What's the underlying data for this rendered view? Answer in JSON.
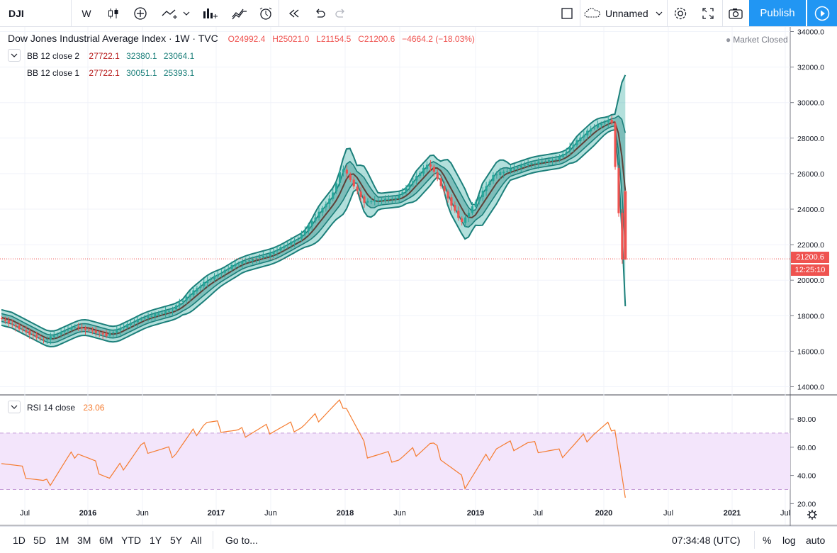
{
  "toolbar": {
    "symbol": "DJI",
    "interval": "W",
    "layout_name": "Unnamed",
    "publish_label": "Publish",
    "icons": [
      "candles-icon",
      "add-compare-icon",
      "indicators-icon",
      "templates-icon",
      "alert-icon",
      "replay-icon",
      "undo-icon",
      "redo-icon",
      "layout-icon",
      "settings-icon",
      "fullscreen-icon",
      "snapshot-icon",
      "publish-play-icon"
    ]
  },
  "header": {
    "title": "Dow Jones Industrial Average Index · 1W · TVC",
    "ohlc": {
      "o": "O24992.4",
      "h": "H25021.0",
      "l": "L21154.5",
      "c": "C21200.6",
      "change": "−4664.2 (−18.03%)"
    },
    "market_status": "Market Closed"
  },
  "indicators": {
    "bb2": {
      "name": "BB 12 close 2",
      "basis": "27722.1",
      "upper": "32380.1",
      "lower": "23064.1"
    },
    "bb1": {
      "name": "BB 12 close 1",
      "basis": "27722.1",
      "upper": "30051.1",
      "lower": "25393.1"
    },
    "rsi": {
      "name": "RSI 14 close",
      "value": "23.06"
    }
  },
  "price_scale": {
    "labels": [
      "34000.0",
      "32000.0",
      "30000.0",
      "28000.0",
      "26000.0",
      "24000.0",
      "22000.0",
      "20000.0",
      "18000.0",
      "16000.0",
      "14000.0"
    ],
    "last_price": "21200.6",
    "countdown": "12:25:10"
  },
  "rsi_scale": {
    "labels": [
      "80.00",
      "60.00",
      "40.00",
      "20.00"
    ],
    "upper_band": 70,
    "lower_band": 30
  },
  "time_axis": {
    "labels": [
      "Jul",
      "2016",
      "Jun",
      "2017",
      "Jun",
      "2018",
      "Jun",
      "2019",
      "Jul",
      "2020",
      "Jul",
      "2021",
      "Jul"
    ]
  },
  "bottom": {
    "ranges": [
      "1D",
      "5D",
      "1M",
      "3M",
      "6M",
      "YTD",
      "1Y",
      "5Y",
      "All"
    ],
    "goto": "Go to...",
    "clock": "07:34:48 (UTC)",
    "percent": "%",
    "log": "log",
    "auto": "auto"
  },
  "colors": {
    "accent": "#2196f3",
    "up": "#26a69a",
    "down": "#ef5350",
    "band": "#1b7f7a",
    "rsi": "#f57c30",
    "rsi_bg": "#f3e5fb"
  },
  "chart_data": {
    "type": "line",
    "x": [
      "2015-06",
      "2015-09",
      "2015-12",
      "2016-03",
      "2016-06",
      "2016-09",
      "2016-12",
      "2017-03",
      "2017-06",
      "2017-09",
      "2017-12",
      "2018-01",
      "2018-03",
      "2018-06",
      "2018-09",
      "2018-12",
      "2019-03",
      "2019-06",
      "2019-09",
      "2019-12",
      "2020-02",
      "2020-03"
    ],
    "series": [
      {
        "name": "Dow Jones Industrial Average Index",
        "values": [
          17900,
          16600,
          17400,
          16900,
          17800,
          18300,
          19800,
          20900,
          21400,
          22400,
          24700,
          26400,
          24400,
          24600,
          26600,
          23200,
          25900,
          26500,
          26800,
          28500,
          29100,
          21200
        ]
      },
      {
        "name": "RSI 14 close",
        "values": [
          52,
          33,
          58,
          38,
          60,
          56,
          78,
          70,
          73,
          75,
          88,
          92,
          56,
          52,
          62,
          34,
          60,
          62,
          55,
          70,
          76,
          23
        ]
      }
    ],
    "ylim": [
      14000,
      34000
    ]
  }
}
